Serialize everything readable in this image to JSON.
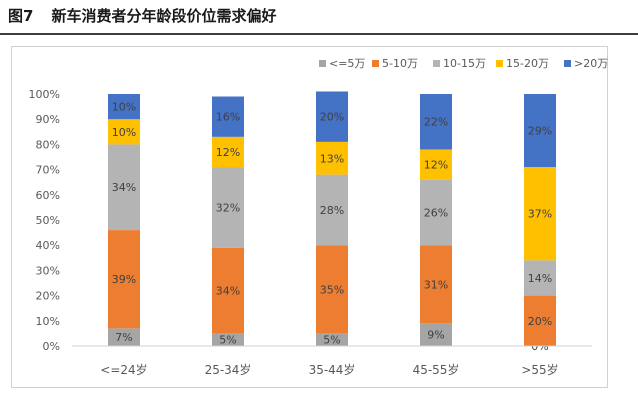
{
  "title": {
    "figure_no": "图7",
    "text": "新车消费者分年龄段价位需求偏好"
  },
  "chart_data": {
    "type": "bar",
    "stacked": true,
    "percent": true,
    "categories": [
      "<=24岁",
      "25-34岁",
      "35-44岁",
      "45-55岁",
      ">55岁"
    ],
    "series": [
      {
        "name": "<=5万",
        "color": "#A5A5A5",
        "values": [
          7,
          5,
          5,
          9,
          0
        ],
        "labels": [
          "7%",
          "5%",
          "5%",
          "9%",
          "0%"
        ]
      },
      {
        "name": "5-10万",
        "color": "#ED7D31",
        "values": [
          39,
          34,
          35,
          31,
          20
        ],
        "labels": [
          "39%",
          "34%",
          "35%",
          "31%",
          "20%"
        ]
      },
      {
        "name": "10-15万",
        "color": "#B4B4B4",
        "values": [
          34,
          32,
          28,
          26,
          14
        ],
        "labels": [
          "34%",
          "32%",
          "28%",
          "26%",
          "14%"
        ]
      },
      {
        "name": "15-20万",
        "color": "#FFC000",
        "values": [
          10,
          12,
          13,
          12,
          37
        ],
        "labels": [
          "10%",
          "12%",
          "13%",
          "12%",
          "37%"
        ]
      },
      {
        "name": ">20万",
        "color": "#4472C4",
        "values": [
          10,
          16,
          20,
          22,
          29
        ],
        "labels": [
          "10%",
          "16%",
          "20%",
          "22%",
          "29%"
        ]
      }
    ],
    "ylim": [
      0,
      100
    ],
    "yticks": [
      "0%",
      "10%",
      "20%",
      "30%",
      "40%",
      "50%",
      "60%",
      "70%",
      "80%",
      "90%",
      "100%"
    ],
    "legend_position": "top-right",
    "grid": false
  }
}
